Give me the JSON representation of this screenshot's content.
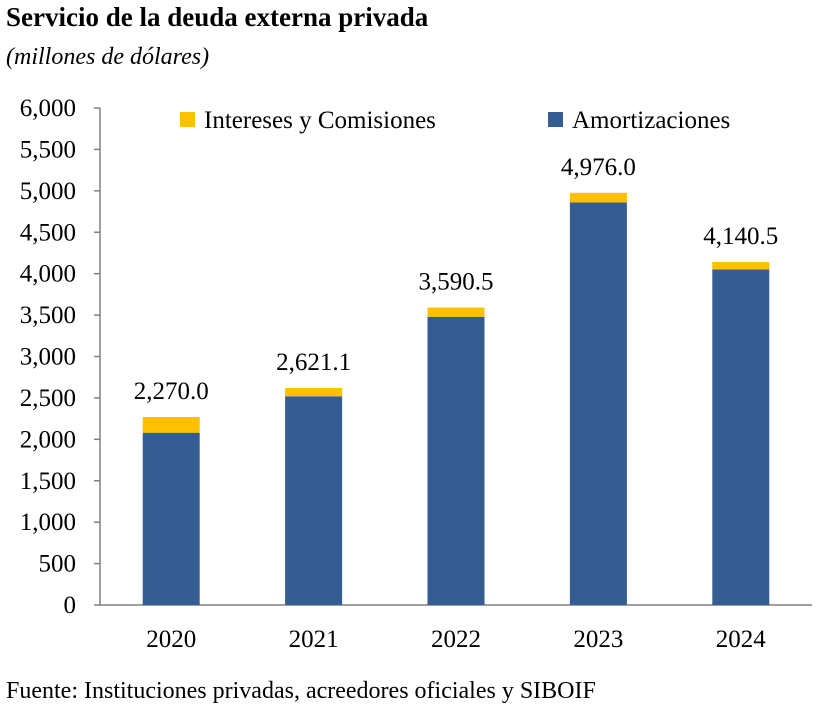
{
  "title": "Servicio de la deuda externa privada",
  "subtitle": "(millones de dólares)",
  "source": "Fuente: Instituciones privadas, acreedores oficiales y SIBOIF",
  "colors": {
    "intereses": "#FFC000",
    "amortizaciones": "#355D91",
    "axis": "#808080"
  },
  "chart_data": {
    "type": "bar",
    "stacked": true,
    "categories": [
      "2020",
      "2021",
      "2022",
      "2023",
      "2024"
    ],
    "series": [
      {
        "name": "Amortizaciones",
        "values": [
          2080,
          2520,
          3480,
          4860,
          4050
        ]
      },
      {
        "name": "Intereses y Comisiones",
        "values": [
          190,
          101.1,
          110.5,
          116,
          90.5
        ]
      }
    ],
    "totals": [
      2270.0,
      2621.1,
      3590.5,
      4976.0,
      4140.5
    ],
    "total_labels": [
      "2,270.0",
      "2,621.1",
      "3,590.5",
      "4,976.0",
      "4,140.5"
    ],
    "ylim": [
      0,
      6000
    ],
    "y_ticks": [
      0,
      500,
      1000,
      1500,
      2000,
      2500,
      3000,
      3500,
      4000,
      4500,
      5000,
      5500,
      6000
    ],
    "y_tick_labels": [
      "0",
      "500",
      "1,000",
      "1,500",
      "2,000",
      "2,500",
      "3,000",
      "3,500",
      "4,000",
      "4,500",
      "5,000",
      "5,500",
      "6,000"
    ],
    "grid": false,
    "legend_position": "top",
    "xlabel": "",
    "ylabel": ""
  }
}
